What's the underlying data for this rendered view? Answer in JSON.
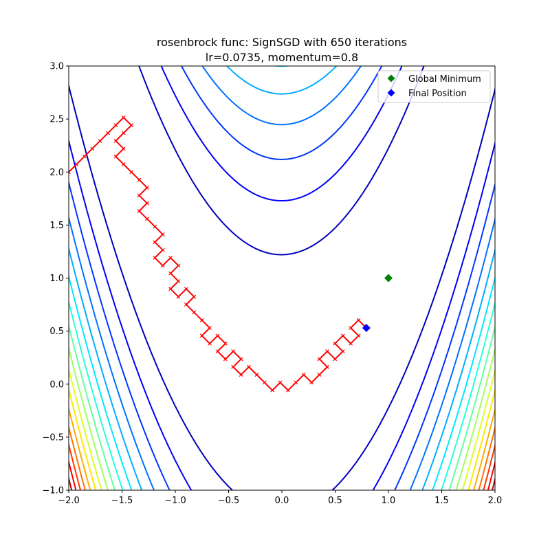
{
  "chart_data": {
    "type": "line",
    "title": "rosenbrock func: SignSGD with 650 iterations",
    "subtitle": "lr=0.0735, momentum=0.8",
    "xlabel": "",
    "ylabel": "",
    "xlim": [
      -2.0,
      2.0
    ],
    "ylim": [
      -1.0,
      3.0
    ],
    "grid": false,
    "x_ticks": [
      -2.0,
      -1.5,
      -1.0,
      -0.5,
      0.0,
      0.5,
      1.0,
      1.5,
      2.0
    ],
    "x_tick_labels": [
      "−2.0",
      "−1.5",
      "−1.0",
      "−0.5",
      "0.0",
      "0.5",
      "1.0",
      "1.5",
      "2.0"
    ],
    "y_ticks": [
      -1.0,
      -0.5,
      0.0,
      0.5,
      1.0,
      1.5,
      2.0,
      2.5,
      3.0
    ],
    "y_tick_labels": [
      "−1.0",
      "−0.5",
      "0.0",
      "0.5",
      "1.0",
      "1.5",
      "2.0",
      "2.5",
      "3.0"
    ],
    "contour": {
      "function": "(1-x)^2 + 100(y-x^2)^2",
      "levels": [
        150,
        300,
        450,
        600,
        750,
        900,
        1050,
        1200,
        1350,
        1500,
        1650,
        1800,
        1950,
        2100,
        2250,
        2400
      ],
      "vmin": 0,
      "vmax": 2550,
      "colormap": "jet"
    },
    "path": {
      "color": "#ff0000",
      "x": [
        -2,
        -1.9265,
        -1.853,
        -1.7795,
        -1.706,
        -1.6325,
        -1.559,
        -1.4855,
        -1.412,
        -1.4855,
        -1.559,
        -1.4855,
        -1.559,
        -1.4855,
        -1.412,
        -1.3385,
        -1.265,
        -1.3385,
        -1.265,
        -1.3385,
        -1.265,
        -1.1915,
        -1.118,
        -1.1915,
        -1.118,
        -1.1915,
        -1.118,
        -1.0445,
        -0.971,
        -1.0445,
        -0.971,
        -1.0445,
        -0.971,
        -0.8975,
        -0.824,
        -0.8975,
        -0.824,
        -0.7505,
        -0.677,
        -0.7505,
        -0.677,
        -0.6035,
        -0.53,
        -0.6035,
        -0.53,
        -0.4565,
        -0.383,
        -0.4565,
        -0.383,
        -0.3095,
        -0.236,
        -0.1625,
        -0.089,
        -0.0155,
        0.058,
        0.1315,
        0.205,
        0.2785,
        0.352,
        0.4255,
        0.352,
        0.4255,
        0.499,
        0.5725,
        0.499,
        0.5725,
        0.646,
        0.7195,
        0.646,
        0.7195,
        0.793
      ],
      "y": [
        2,
        2.0735,
        2.147,
        2.2205,
        2.294,
        2.3675,
        2.441,
        2.5145,
        2.441,
        2.3675,
        2.294,
        2.2205,
        2.147,
        2.0735,
        2,
        1.9265,
        1.853,
        1.7795,
        1.706,
        1.6325,
        1.559,
        1.4855,
        1.412,
        1.3385,
        1.265,
        1.1915,
        1.118,
        1.1915,
        1.118,
        1.0445,
        0.971,
        0.8975,
        0.824,
        0.8975,
        0.824,
        0.7505,
        0.677,
        0.6035,
        0.53,
        0.4565,
        0.383,
        0.4565,
        0.383,
        0.3095,
        0.236,
        0.3095,
        0.236,
        0.1625,
        0.089,
        0.1625,
        0.089,
        0.0155,
        -0.058,
        0.0155,
        -0.058,
        0.0155,
        0.089,
        0.0155,
        0.089,
        0.1625,
        0.236,
        0.3095,
        0.236,
        0.3095,
        0.383,
        0.4565,
        0.383,
        0.4565,
        0.53,
        0.6035,
        0.53
      ]
    },
    "global_minimum": {
      "x": 1.0,
      "y": 1.0,
      "color": "#008000"
    },
    "final_position": {
      "x": 0.793,
      "y": 0.53,
      "color": "#0000ff"
    },
    "legend": {
      "placement": "top-right",
      "entries": [
        "Global Minimum",
        "Final Position"
      ]
    }
  }
}
